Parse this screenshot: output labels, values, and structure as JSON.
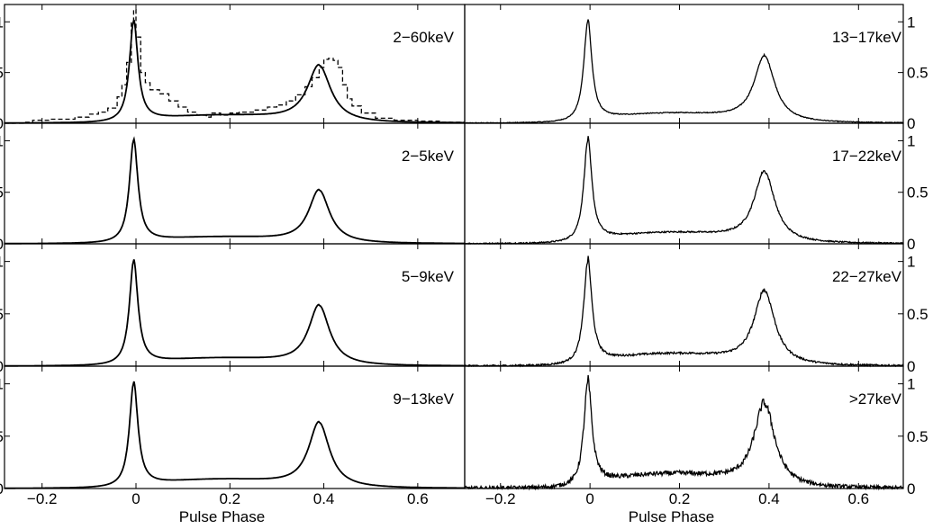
{
  "chart_data": {
    "type": "line",
    "title": "",
    "xlabel": "Pulse Phase",
    "ylabel": "",
    "xlim": [
      -0.28,
      0.7
    ],
    "ylim": [
      0,
      1.1
    ],
    "x_ticks": [
      -0.2,
      0,
      0.2,
      0.4,
      0.6
    ],
    "x_tick_labels": [
      "−0.2",
      "0",
      "0.2",
      "0.4",
      "0.6"
    ],
    "y_ticks": [
      0,
      0.5,
      1
    ],
    "y_tick_labels": [
      "0",
      "0.5",
      "1"
    ],
    "panels": [
      {
        "label": "2−60keV",
        "column": "left",
        "row": 0,
        "p1": 1.0,
        "p2": 0.63,
        "p2_width": 0.03,
        "base": 0.07,
        "noise": 0.0,
        "comparison_histogram": true
      },
      {
        "label": "2−5keV",
        "column": "left",
        "row": 1,
        "p1": 1.0,
        "p2": 0.58,
        "p2_width": 0.027,
        "base": 0.06,
        "noise": 0.0
      },
      {
        "label": "5−9keV",
        "column": "left",
        "row": 2,
        "p1": 1.0,
        "p2": 0.64,
        "p2_width": 0.027,
        "base": 0.07,
        "noise": 0.0
      },
      {
        "label": "9−13keV",
        "column": "left",
        "row": 3,
        "p1": 1.0,
        "p2": 0.69,
        "p2_width": 0.027,
        "base": 0.08,
        "noise": 0.0
      },
      {
        "label": "13−17keV",
        "column": "right",
        "row": 0,
        "p1": 1.0,
        "p2": 0.72,
        "p2_width": 0.028,
        "base": 0.09,
        "noise": 0.006
      },
      {
        "label": "17−22keV",
        "column": "right",
        "row": 1,
        "p1": 1.0,
        "p2": 0.76,
        "p2_width": 0.028,
        "base": 0.1,
        "noise": 0.01
      },
      {
        "label": "22−27keV",
        "column": "right",
        "row": 2,
        "p1": 1.0,
        "p2": 0.78,
        "p2_width": 0.028,
        "base": 0.11,
        "noise": 0.013
      },
      {
        "label": ">27keV",
        "column": "right",
        "row": 3,
        "p1": 1.0,
        "p2": 0.87,
        "p2_width": 0.028,
        "base": 0.13,
        "noise": 0.03
      }
    ],
    "comparison_histogram": [
      {
        "x": -0.28,
        "y": 0.0
      },
      {
        "x": -0.24,
        "y": 0.01
      },
      {
        "x": -0.22,
        "y": 0.03
      },
      {
        "x": -0.18,
        "y": 0.04
      },
      {
        "x": -0.13,
        "y": 0.06
      },
      {
        "x": -0.1,
        "y": 0.09
      },
      {
        "x": -0.08,
        "y": 0.11
      },
      {
        "x": -0.06,
        "y": 0.15
      },
      {
        "x": -0.04,
        "y": 0.26
      },
      {
        "x": -0.03,
        "y": 0.38
      },
      {
        "x": -0.02,
        "y": 0.6
      },
      {
        "x": -0.01,
        "y": 1.0
      },
      {
        "x": -0.005,
        "y": 1.12
      },
      {
        "x": 0.0,
        "y": 0.85
      },
      {
        "x": 0.01,
        "y": 0.5
      },
      {
        "x": 0.02,
        "y": 0.4
      },
      {
        "x": 0.03,
        "y": 0.33
      },
      {
        "x": 0.05,
        "y": 0.29
      },
      {
        "x": 0.07,
        "y": 0.22
      },
      {
        "x": 0.09,
        "y": 0.16
      },
      {
        "x": 0.11,
        "y": 0.11
      },
      {
        "x": 0.13,
        "y": 0.08
      },
      {
        "x": 0.15,
        "y": 0.06
      },
      {
        "x": 0.16,
        "y": 0.1
      },
      {
        "x": 0.18,
        "y": 0.08
      },
      {
        "x": 0.2,
        "y": 0.1
      },
      {
        "x": 0.22,
        "y": 0.11
      },
      {
        "x": 0.25,
        "y": 0.13
      },
      {
        "x": 0.28,
        "y": 0.16
      },
      {
        "x": 0.3,
        "y": 0.18
      },
      {
        "x": 0.32,
        "y": 0.22
      },
      {
        "x": 0.34,
        "y": 0.28
      },
      {
        "x": 0.36,
        "y": 0.36
      },
      {
        "x": 0.375,
        "y": 0.45
      },
      {
        "x": 0.39,
        "y": 0.55
      },
      {
        "x": 0.4,
        "y": 0.63
      },
      {
        "x": 0.41,
        "y": 0.64
      },
      {
        "x": 0.42,
        "y": 0.62
      },
      {
        "x": 0.43,
        "y": 0.55
      },
      {
        "x": 0.44,
        "y": 0.38
      },
      {
        "x": 0.45,
        "y": 0.24
      },
      {
        "x": 0.46,
        "y": 0.17
      },
      {
        "x": 0.48,
        "y": 0.1
      },
      {
        "x": 0.51,
        "y": 0.05
      },
      {
        "x": 0.55,
        "y": 0.03
      },
      {
        "x": 0.6,
        "y": 0.02
      },
      {
        "x": 0.65,
        "y": 0.01
      },
      {
        "x": 0.7,
        "y": 0.01
      }
    ]
  }
}
